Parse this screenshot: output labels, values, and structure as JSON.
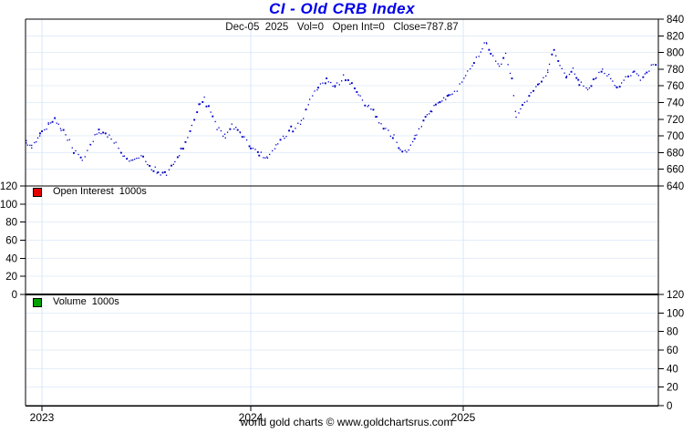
{
  "title": "CI - Old CRB Index",
  "subtitle": "Dec-05  2025   Vol=0   Open Int=0   Close=787.87",
  "footer": "world gold charts © www.goldchartsrus.com",
  "colors": {
    "title_blue": "#0000e8",
    "price_dot": "#0000c8",
    "open_interest_red": "#e60000",
    "volume_green": "#00a000",
    "grid_horizontal": "#e4eefa",
    "grid_vertical": "#d9e7f7",
    "axis_black": "#000000"
  },
  "legend": {
    "open_interest": "Open Interest  1000s",
    "volume": "Volume  1000s"
  },
  "chart_data": {
    "type": "scatter",
    "title": "CI - Old CRB Index",
    "status_line": {
      "date": "Dec-05 2025",
      "vol": 0,
      "open_int": 0,
      "close": 787.87
    },
    "x_axis": {
      "tick_labels": [
        "2023",
        "2024",
        "2025"
      ],
      "range_years": [
        2022.92,
        2025.94
      ],
      "grid": true
    },
    "panels": {
      "price": {
        "name": "CI Old CRB Index close",
        "axis_side": "right",
        "ylim": [
          640,
          840
        ],
        "yticks": [
          840,
          820,
          800,
          780,
          760,
          740,
          720,
          700,
          680,
          660,
          640
        ],
        "style": "blue dotted daily closes",
        "points": [
          [
            2022.92,
            692
          ],
          [
            2022.96,
            688
          ],
          [
            2023.0,
            700
          ],
          [
            2023.04,
            714
          ],
          [
            2023.07,
            719
          ],
          [
            2023.1,
            708
          ],
          [
            2023.13,
            698
          ],
          [
            2023.16,
            683
          ],
          [
            2023.2,
            672
          ],
          [
            2023.24,
            691
          ],
          [
            2023.28,
            707
          ],
          [
            2023.32,
            700
          ],
          [
            2023.36,
            692
          ],
          [
            2023.4,
            676
          ],
          [
            2023.44,
            668
          ],
          [
            2023.48,
            677
          ],
          [
            2023.52,
            665
          ],
          [
            2023.56,
            657
          ],
          [
            2023.6,
            654
          ],
          [
            2023.64,
            669
          ],
          [
            2023.68,
            688
          ],
          [
            2023.72,
            712
          ],
          [
            2023.76,
            741
          ],
          [
            2023.78,
            745
          ],
          [
            2023.81,
            729
          ],
          [
            2023.84,
            709
          ],
          [
            2023.88,
            700
          ],
          [
            2023.91,
            712
          ],
          [
            2023.95,
            704
          ],
          [
            2024.0,
            688
          ],
          [
            2024.04,
            677
          ],
          [
            2024.08,
            673
          ],
          [
            2024.12,
            687
          ],
          [
            2024.16,
            699
          ],
          [
            2024.2,
            707
          ],
          [
            2024.24,
            718
          ],
          [
            2024.28,
            741
          ],
          [
            2024.32,
            758
          ],
          [
            2024.36,
            766
          ],
          [
            2024.4,
            758
          ],
          [
            2024.44,
            770
          ],
          [
            2024.48,
            762
          ],
          [
            2024.52,
            748
          ],
          [
            2024.56,
            735
          ],
          [
            2024.6,
            722
          ],
          [
            2024.64,
            708
          ],
          [
            2024.68,
            697
          ],
          [
            2024.71,
            684
          ],
          [
            2024.74,
            679
          ],
          [
            2024.78,
            698
          ],
          [
            2024.82,
            718
          ],
          [
            2024.86,
            731
          ],
          [
            2024.9,
            741
          ],
          [
            2024.94,
            748
          ],
          [
            2024.98,
            755
          ],
          [
            2025.02,
            772
          ],
          [
            2025.06,
            788
          ],
          [
            2025.1,
            804
          ],
          [
            2025.12,
            812
          ],
          [
            2025.15,
            795
          ],
          [
            2025.18,
            783
          ],
          [
            2025.21,
            799
          ],
          [
            2025.24,
            768
          ],
          [
            2025.26,
            724
          ],
          [
            2025.29,
            737
          ],
          [
            2025.33,
            752
          ],
          [
            2025.37,
            763
          ],
          [
            2025.41,
            778
          ],
          [
            2025.44,
            804
          ],
          [
            2025.46,
            788
          ],
          [
            2025.5,
            770
          ],
          [
            2025.53,
            779
          ],
          [
            2025.56,
            763
          ],
          [
            2025.6,
            756
          ],
          [
            2025.64,
            770
          ],
          [
            2025.67,
            781
          ],
          [
            2025.7,
            772
          ],
          [
            2025.74,
            757
          ],
          [
            2025.78,
            770
          ],
          [
            2025.82,
            780
          ],
          [
            2025.85,
            768
          ],
          [
            2025.88,
            775
          ],
          [
            2025.91,
            786
          ],
          [
            2025.93,
            788
          ]
        ]
      },
      "open_interest": {
        "name": "Open Interest 1000s",
        "axis_side": "left",
        "ylim": [
          0,
          120
        ],
        "yticks": [
          120,
          100,
          80,
          60,
          40,
          20,
          0
        ],
        "points": []
      },
      "volume": {
        "name": "Volume 1000s",
        "axis_side": "right",
        "ylim": [
          0,
          120
        ],
        "yticks": [
          120,
          100,
          80,
          60,
          40,
          20,
          0
        ],
        "points": []
      }
    }
  }
}
